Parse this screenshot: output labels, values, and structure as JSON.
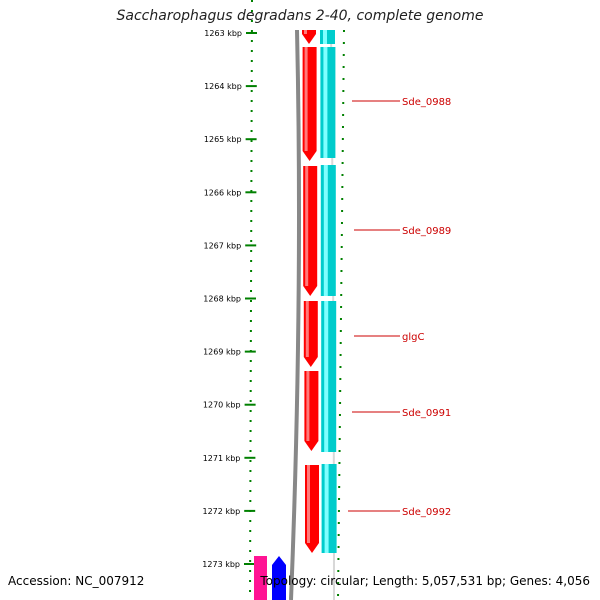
{
  "title": "Saccharophagus degradans 2-40, complete genome",
  "accession": "Accession: NC_007912",
  "topology": "Topology: circular; Length: 5,057,531 bp; Genes: 4,056",
  "colors": {
    "forward_gene": "#ff0000",
    "cds": "#00d8d8",
    "ticks": "#008000",
    "label": "#cc0000",
    "backbone": "#888888",
    "other_magenta": "#ff1493",
    "other_blue": "#0000ff"
  },
  "ticks": [
    {
      "label": "1263 kbp"
    },
    {
      "label": "1264 kbp"
    },
    {
      "label": "1265 kbp"
    },
    {
      "label": "1266 kbp"
    },
    {
      "label": "1267 kbp"
    },
    {
      "label": "1268 kbp"
    },
    {
      "label": "1269 kbp"
    },
    {
      "label": "1270 kbp"
    },
    {
      "label": "1271 kbp"
    },
    {
      "label": "1272 kbp"
    },
    {
      "label": "1273 kbp"
    }
  ],
  "genes": [
    {
      "name": "Sde_0988"
    },
    {
      "name": "Sde_0989"
    },
    {
      "name": "glgC"
    },
    {
      "name": "Sde_0991"
    },
    {
      "name": "Sde_0992"
    }
  ]
}
